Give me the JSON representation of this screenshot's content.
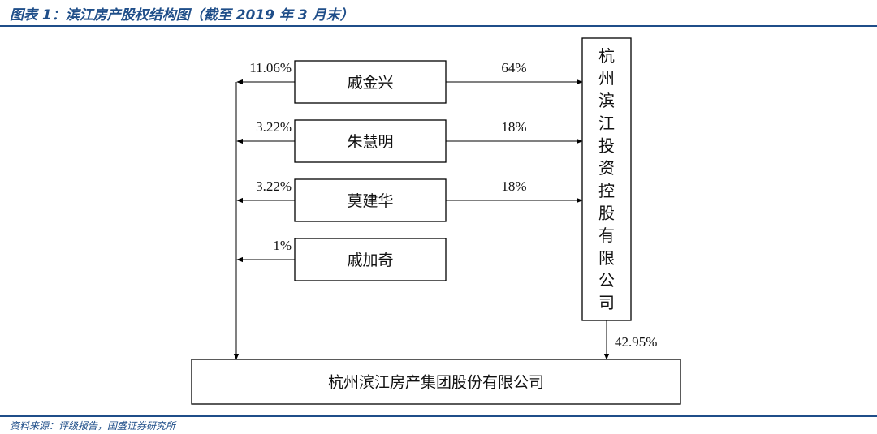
{
  "caption": "图表 1：滨江房产股权结构图（截至 2019 年 3 月末）",
  "source": "资料来源：评级报告，国盛证券研究所",
  "colors": {
    "accent": "#1F4E89",
    "lines": "#000000"
  },
  "holding_company": "杭州滨江投资控股有限公司",
  "target_company": "杭州滨江房产集团股份有限公司",
  "holding_to_target_pct": "42.95%",
  "shareholders": [
    {
      "name": "戚金兴",
      "direct_pct": "11.06%",
      "holding_pct": "64%"
    },
    {
      "name": "朱慧明",
      "direct_pct": "3.22%",
      "holding_pct": "18%"
    },
    {
      "name": "莫建华",
      "direct_pct": "3.22%",
      "holding_pct": "18%"
    },
    {
      "name": "戚加奇",
      "direct_pct": "1%",
      "holding_pct": ""
    }
  ]
}
